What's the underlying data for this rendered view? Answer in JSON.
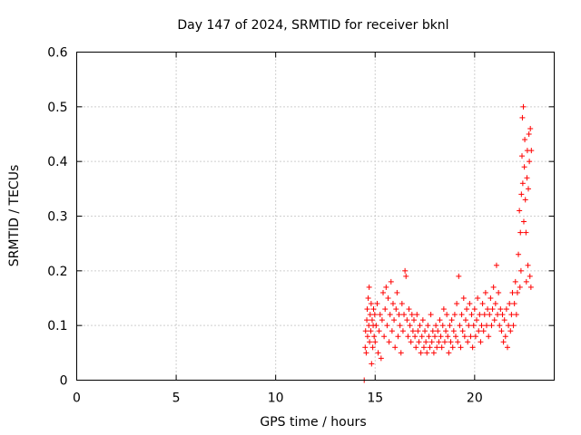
{
  "chart_data": {
    "type": "scatter",
    "title": "Day 147 of 2024, SRMTID for receiver bknl",
    "xlabel": "GPS time / hours",
    "ylabel": "SRMTID / TECUs",
    "xlim": [
      0,
      24
    ],
    "ylim": [
      0,
      0.6
    ],
    "xticks": [
      0,
      5,
      10,
      15,
      20
    ],
    "yticks": [
      0,
      0.1,
      0.2,
      0.3,
      0.4,
      0.5,
      0.6
    ],
    "xtick_labels": [
      "0",
      "5",
      "10",
      "15",
      "20"
    ],
    "ytick_labels": [
      "0",
      "0.1",
      "0.2",
      "0.3",
      "0.4",
      "0.5",
      "0.6"
    ],
    "grid": true,
    "marker": "+",
    "color": "#ff0000",
    "series": [
      {
        "name": "SRMTID",
        "points": [
          [
            14.45,
            0.0
          ],
          [
            14.5,
            0.06
          ],
          [
            14.52,
            0.09
          ],
          [
            14.55,
            0.05
          ],
          [
            14.58,
            0.11
          ],
          [
            14.6,
            0.13
          ],
          [
            14.62,
            0.08
          ],
          [
            14.65,
            0.15
          ],
          [
            14.68,
            0.1
          ],
          [
            14.7,
            0.17
          ],
          [
            14.72,
            0.07
          ],
          [
            14.75,
            0.12
          ],
          [
            14.78,
            0.09
          ],
          [
            14.8,
            0.14
          ],
          [
            14.82,
            0.03
          ],
          [
            14.85,
            0.11
          ],
          [
            14.88,
            0.06
          ],
          [
            14.9,
            0.1
          ],
          [
            14.92,
            0.13
          ],
          [
            14.95,
            0.08
          ],
          [
            14.98,
            0.12
          ],
          [
            15.0,
            0.07
          ],
          [
            15.05,
            0.1
          ],
          [
            15.1,
            0.14
          ],
          [
            15.15,
            0.05
          ],
          [
            15.2,
            0.09
          ],
          [
            15.25,
            0.12
          ],
          [
            15.3,
            0.04
          ],
          [
            15.35,
            0.11
          ],
          [
            15.4,
            0.16
          ],
          [
            15.45,
            0.08
          ],
          [
            15.5,
            0.13
          ],
          [
            15.55,
            0.17
          ],
          [
            15.6,
            0.1
          ],
          [
            15.65,
            0.15
          ],
          [
            15.7,
            0.07
          ],
          [
            15.75,
            0.12
          ],
          [
            15.8,
            0.18
          ],
          [
            15.85,
            0.09
          ],
          [
            15.9,
            0.14
          ],
          [
            15.95,
            0.11
          ],
          [
            16.0,
            0.06
          ],
          [
            16.05,
            0.13
          ],
          [
            16.1,
            0.16
          ],
          [
            16.15,
            0.08
          ],
          [
            16.2,
            0.12
          ],
          [
            16.25,
            0.1
          ],
          [
            16.3,
            0.05
          ],
          [
            16.35,
            0.14
          ],
          [
            16.4,
            0.09
          ],
          [
            16.45,
            0.12
          ],
          [
            16.5,
            0.2
          ],
          [
            16.55,
            0.19
          ],
          [
            16.6,
            0.11
          ],
          [
            16.65,
            0.08
          ],
          [
            16.7,
            0.13
          ],
          [
            16.75,
            0.1
          ],
          [
            16.8,
            0.07
          ],
          [
            16.85,
            0.12
          ],
          [
            16.9,
            0.09
          ],
          [
            16.95,
            0.11
          ],
          [
            17.0,
            0.08
          ],
          [
            17.05,
            0.06
          ],
          [
            17.1,
            0.12
          ],
          [
            17.15,
            0.09
          ],
          [
            17.2,
            0.07
          ],
          [
            17.25,
            0.1
          ],
          [
            17.3,
            0.05
          ],
          [
            17.35,
            0.08
          ],
          [
            17.4,
            0.11
          ],
          [
            17.45,
            0.06
          ],
          [
            17.5,
            0.09
          ],
          [
            17.55,
            0.07
          ],
          [
            17.6,
            0.05
          ],
          [
            17.65,
            0.1
          ],
          [
            17.7,
            0.08
          ],
          [
            17.75,
            0.06
          ],
          [
            17.8,
            0.12
          ],
          [
            17.85,
            0.07
          ],
          [
            17.9,
            0.09
          ],
          [
            17.95,
            0.05
          ],
          [
            18.0,
            0.08
          ],
          [
            18.05,
            0.1
          ],
          [
            18.1,
            0.06
          ],
          [
            18.15,
            0.09
          ],
          [
            18.2,
            0.07
          ],
          [
            18.25,
            0.11
          ],
          [
            18.3,
            0.08
          ],
          [
            18.35,
            0.06
          ],
          [
            18.4,
            0.1
          ],
          [
            18.45,
            0.13
          ],
          [
            18.5,
            0.07
          ],
          [
            18.55,
            0.09
          ],
          [
            18.6,
            0.12
          ],
          [
            18.65,
            0.08
          ],
          [
            18.7,
            0.05
          ],
          [
            18.75,
            0.1
          ],
          [
            18.8,
            0.07
          ],
          [
            18.85,
            0.11
          ],
          [
            18.9,
            0.06
          ],
          [
            18.95,
            0.09
          ],
          [
            19.0,
            0.12
          ],
          [
            19.05,
            0.08
          ],
          [
            19.1,
            0.14
          ],
          [
            19.15,
            0.07
          ],
          [
            19.2,
            0.19
          ],
          [
            19.25,
            0.1
          ],
          [
            19.3,
            0.06
          ],
          [
            19.35,
            0.12
          ],
          [
            19.4,
            0.09
          ],
          [
            19.45,
            0.15
          ],
          [
            19.5,
            0.08
          ],
          [
            19.55,
            0.11
          ],
          [
            19.6,
            0.13
          ],
          [
            19.65,
            0.07
          ],
          [
            19.7,
            0.1
          ],
          [
            19.75,
            0.14
          ],
          [
            19.8,
            0.08
          ],
          [
            19.85,
            0.12
          ],
          [
            19.9,
            0.06
          ],
          [
            19.95,
            0.1
          ],
          [
            20.0,
            0.13
          ],
          [
            20.05,
            0.08
          ],
          [
            20.1,
            0.11
          ],
          [
            20.15,
            0.15
          ],
          [
            20.2,
            0.09
          ],
          [
            20.25,
            0.12
          ],
          [
            20.3,
            0.07
          ],
          [
            20.35,
            0.1
          ],
          [
            20.4,
            0.14
          ],
          [
            20.45,
            0.09
          ],
          [
            20.5,
            0.12
          ],
          [
            20.55,
            0.16
          ],
          [
            20.6,
            0.1
          ],
          [
            20.65,
            0.13
          ],
          [
            20.7,
            0.08
          ],
          [
            20.75,
            0.12
          ],
          [
            20.8,
            0.15
          ],
          [
            20.85,
            0.1
          ],
          [
            20.9,
            0.13
          ],
          [
            20.95,
            0.17
          ],
          [
            21.0,
            0.11
          ],
          [
            21.05,
            0.14
          ],
          [
            21.1,
            0.21
          ],
          [
            21.15,
            0.12
          ],
          [
            21.2,
            0.16
          ],
          [
            21.25,
            0.1
          ],
          [
            21.3,
            0.13
          ],
          [
            21.35,
            0.09
          ],
          [
            21.4,
            0.12
          ],
          [
            21.45,
            0.07
          ],
          [
            21.5,
            0.11
          ],
          [
            21.55,
            0.08
          ],
          [
            21.6,
            0.13
          ],
          [
            21.65,
            0.06
          ],
          [
            21.7,
            0.1
          ],
          [
            21.75,
            0.14
          ],
          [
            21.8,
            0.09
          ],
          [
            21.85,
            0.12
          ],
          [
            21.9,
            0.16
          ],
          [
            21.95,
            0.1
          ],
          [
            22.0,
            0.14
          ],
          [
            22.05,
            0.18
          ],
          [
            22.1,
            0.12
          ],
          [
            22.15,
            0.16
          ],
          [
            22.2,
            0.23
          ],
          [
            22.25,
            0.31
          ],
          [
            22.28,
            0.17
          ],
          [
            22.3,
            0.27
          ],
          [
            22.33,
            0.2
          ],
          [
            22.35,
            0.34
          ],
          [
            22.38,
            0.41
          ],
          [
            22.4,
            0.48
          ],
          [
            22.42,
            0.36
          ],
          [
            22.45,
            0.5
          ],
          [
            22.47,
            0.29
          ],
          [
            22.5,
            0.39
          ],
          [
            22.52,
            0.44
          ],
          [
            22.55,
            0.33
          ],
          [
            22.58,
            0.27
          ],
          [
            22.6,
            0.18
          ],
          [
            22.63,
            0.37
          ],
          [
            22.65,
            0.42
          ],
          [
            22.68,
            0.21
          ],
          [
            22.7,
            0.35
          ],
          [
            22.73,
            0.45
          ],
          [
            22.75,
            0.4
          ],
          [
            22.78,
            0.19
          ],
          [
            22.8,
            0.46
          ],
          [
            22.83,
            0.17
          ],
          [
            22.85,
            0.42
          ]
        ]
      }
    ]
  }
}
